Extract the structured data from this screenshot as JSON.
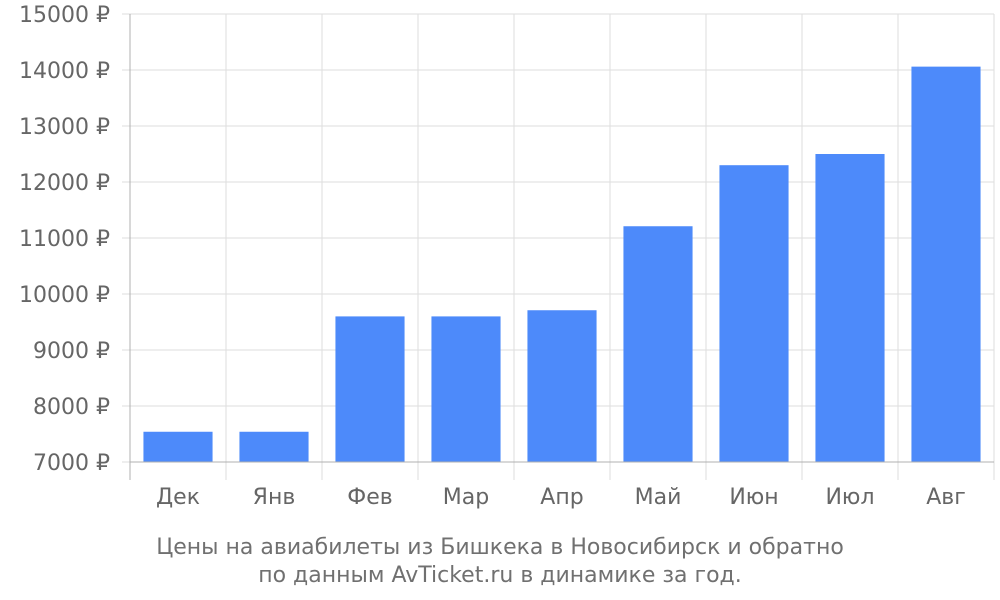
{
  "chart_data": {
    "type": "bar",
    "categories": [
      "Дек",
      "Янв",
      "Фев",
      "Мар",
      "Апр",
      "Май",
      "Июн",
      "Июл",
      "Авг"
    ],
    "values": [
      7540,
      7540,
      9600,
      9600,
      9710,
      11210,
      12300,
      12500,
      14060
    ],
    "ylim": [
      7000,
      15000
    ],
    "yticks": [
      7000,
      8000,
      9000,
      10000,
      11000,
      12000,
      13000,
      14000,
      15000
    ],
    "y_unit": "₽",
    "grid": true,
    "caption_lines": [
      "Цены на авиабилеты из Бишкека в Новосибирск и обратно",
      "по данным AvTicket.ru в динамике за год."
    ],
    "colors": {
      "bar": "#4d8afa",
      "grid": "#dedede",
      "axis": "#b0b0b0",
      "text": "#666666"
    }
  }
}
